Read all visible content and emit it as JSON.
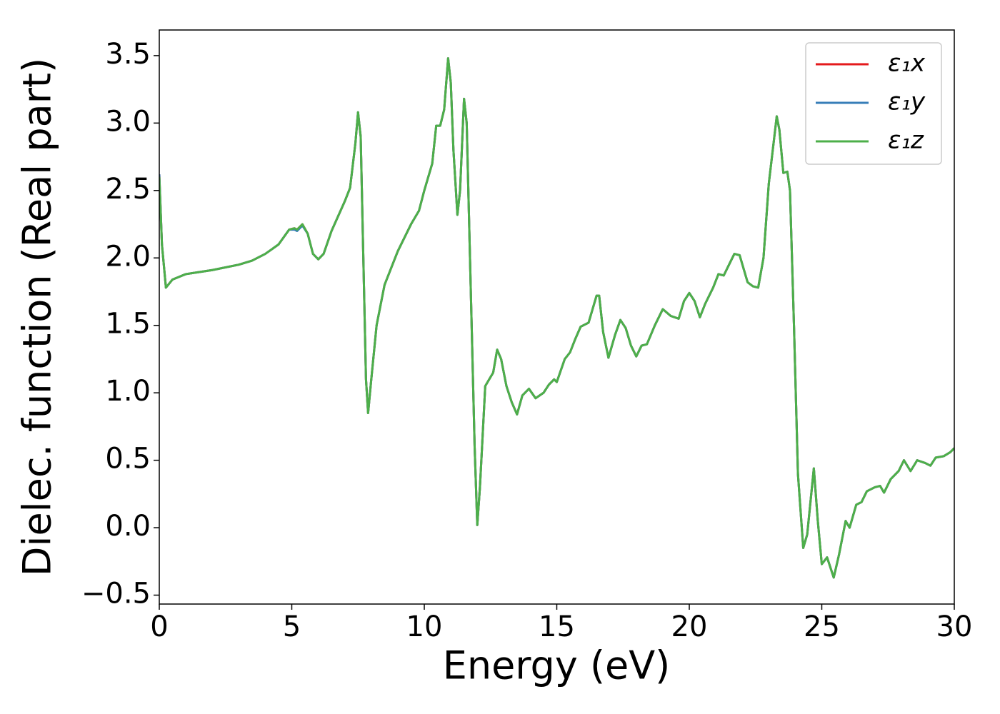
{
  "chart_data": {
    "type": "line",
    "xlabel": "Energy (eV)",
    "ylabel": "Dielec. function (Real part)",
    "xlim": [
      0,
      30
    ],
    "ylim": [
      -0.566,
      3.69
    ],
    "xticks": [
      0,
      5,
      10,
      15,
      20,
      25,
      30
    ],
    "yticks": [
      {
        "value": -0.5,
        "label": "−0.5"
      },
      {
        "value": 0,
        "label": "0.0"
      },
      0.5,
      {
        "value": 1,
        "label": "1.0"
      },
      1.5,
      {
        "value": 2,
        "label": "2.0"
      },
      2.5,
      {
        "value": 3,
        "label": "3.0"
      },
      3.5
    ],
    "grid": false,
    "legend": "upper right",
    "x": [
      0,
      0.1,
      0.25,
      0.5,
      1,
      2,
      3,
      3.5,
      4,
      4.5,
      4.9,
      5.1,
      5.2,
      5.4,
      5.6,
      5.8,
      6.0,
      6.2,
      6.5,
      7.0,
      7.2,
      7.4,
      7.5,
      7.6,
      7.7,
      7.8,
      7.88,
      8.0,
      8.2,
      8.5,
      9.0,
      9.5,
      9.8,
      10.0,
      10.3,
      10.45,
      10.6,
      10.75,
      10.9,
      11.0,
      11.1,
      11.25,
      11.35,
      11.5,
      11.6,
      11.75,
      11.9,
      12.0,
      12.1,
      12.3,
      12.45,
      12.6,
      12.75,
      12.9,
      13.1,
      13.3,
      13.5,
      13.7,
      13.95,
      14.2,
      14.5,
      14.7,
      14.9,
      15.0,
      15.3,
      15.5,
      15.7,
      15.9,
      16.2,
      16.5,
      16.6,
      16.75,
      16.95,
      17.2,
      17.4,
      17.6,
      17.8,
      18.0,
      18.2,
      18.4,
      18.7,
      19.0,
      19.3,
      19.6,
      19.8,
      20.0,
      20.2,
      20.4,
      20.6,
      20.9,
      21.1,
      21.3,
      21.5,
      21.7,
      21.9,
      22.2,
      22.4,
      22.6,
      22.8,
      23.0,
      23.3,
      23.4,
      23.55,
      23.7,
      23.8,
      23.95,
      24.1,
      24.3,
      24.45,
      24.7,
      24.85,
      25.0,
      25.2,
      25.45,
      25.65,
      25.9,
      26.05,
      26.3,
      26.5,
      26.7,
      27.0,
      27.2,
      27.35,
      27.6,
      27.9,
      28.1,
      28.35,
      28.6,
      28.9,
      29.1,
      29.3,
      29.6,
      29.85,
      30
    ],
    "series": [
      {
        "name": "ε₁x",
        "color": "#e41a1c",
        "values": [
          2.62,
          2.1,
          1.78,
          1.84,
          1.88,
          1.91,
          1.95,
          1.98,
          2.03,
          2.1,
          2.21,
          2.22,
          2.21,
          2.25,
          2.18,
          2.03,
          1.99,
          2.03,
          2.2,
          2.42,
          2.52,
          2.85,
          3.08,
          2.9,
          2.0,
          1.1,
          0.85,
          1.1,
          1.5,
          1.8,
          2.05,
          2.25,
          2.35,
          2.5,
          2.7,
          2.98,
          2.98,
          3.1,
          3.48,
          3.3,
          2.8,
          2.32,
          2.5,
          3.18,
          3.0,
          1.8,
          0.6,
          0.02,
          0.3,
          1.05,
          1.1,
          1.15,
          1.32,
          1.25,
          1.05,
          0.93,
          0.84,
          0.98,
          1.03,
          0.96,
          1.0,
          1.06,
          1.1,
          1.08,
          1.25,
          1.3,
          1.4,
          1.49,
          1.52,
          1.72,
          1.72,
          1.45,
          1.26,
          1.43,
          1.54,
          1.48,
          1.35,
          1.27,
          1.35,
          1.36,
          1.5,
          1.62,
          1.57,
          1.55,
          1.68,
          1.74,
          1.68,
          1.56,
          1.66,
          1.78,
          1.88,
          1.87,
          1.95,
          2.03,
          2.02,
          1.82,
          1.79,
          1.78,
          2.0,
          2.55,
          3.05,
          2.95,
          2.63,
          2.64,
          2.5,
          1.5,
          0.4,
          -0.15,
          -0.05,
          0.44,
          0.05,
          -0.27,
          -0.22,
          -0.37,
          -0.2,
          0.05,
          0.0,
          0.17,
          0.19,
          0.27,
          0.3,
          0.31,
          0.26,
          0.36,
          0.42,
          0.5,
          0.42,
          0.5,
          0.48,
          0.46,
          0.52,
          0.53,
          0.56,
          0.59
        ]
      },
      {
        "name": "ε₁y",
        "color": "#377eb8",
        "values": [
          2.62,
          2.1,
          1.78,
          1.84,
          1.88,
          1.91,
          1.95,
          1.98,
          2.03,
          2.1,
          2.21,
          2.21,
          2.2,
          2.24,
          2.18,
          2.03,
          1.99,
          2.03,
          2.2,
          2.42,
          2.52,
          2.85,
          3.08,
          2.9,
          2.0,
          1.1,
          0.85,
          1.1,
          1.5,
          1.8,
          2.05,
          2.25,
          2.35,
          2.5,
          2.7,
          2.98,
          2.98,
          3.1,
          3.48,
          3.3,
          2.8,
          2.32,
          2.5,
          3.18,
          3.0,
          1.8,
          0.6,
          0.02,
          0.3,
          1.05,
          1.1,
          1.15,
          1.32,
          1.25,
          1.05,
          0.93,
          0.84,
          0.98,
          1.03,
          0.96,
          1.0,
          1.06,
          1.1,
          1.08,
          1.25,
          1.3,
          1.4,
          1.49,
          1.52,
          1.72,
          1.72,
          1.45,
          1.26,
          1.43,
          1.54,
          1.48,
          1.35,
          1.27,
          1.35,
          1.36,
          1.5,
          1.62,
          1.57,
          1.55,
          1.68,
          1.74,
          1.68,
          1.56,
          1.66,
          1.78,
          1.88,
          1.87,
          1.95,
          2.03,
          2.02,
          1.82,
          1.79,
          1.78,
          2.0,
          2.55,
          3.05,
          2.95,
          2.63,
          2.64,
          2.5,
          1.5,
          0.4,
          -0.15,
          -0.05,
          0.44,
          0.05,
          -0.27,
          -0.22,
          -0.37,
          -0.2,
          0.05,
          0.0,
          0.17,
          0.19,
          0.27,
          0.3,
          0.31,
          0.26,
          0.36,
          0.42,
          0.5,
          0.42,
          0.5,
          0.48,
          0.46,
          0.52,
          0.53,
          0.56,
          0.59
        ]
      },
      {
        "name": "ε₁z",
        "color": "#4daf4a",
        "values": [
          2.6,
          2.1,
          1.78,
          1.84,
          1.88,
          1.91,
          1.95,
          1.98,
          2.03,
          2.1,
          2.21,
          2.22,
          2.21,
          2.25,
          2.18,
          2.03,
          1.99,
          2.03,
          2.2,
          2.42,
          2.52,
          2.85,
          3.08,
          2.9,
          2.0,
          1.1,
          0.85,
          1.1,
          1.5,
          1.8,
          2.05,
          2.25,
          2.35,
          2.5,
          2.7,
          2.98,
          2.98,
          3.1,
          3.48,
          3.3,
          2.8,
          2.32,
          2.5,
          3.18,
          3.0,
          1.8,
          0.6,
          0.02,
          0.3,
          1.05,
          1.1,
          1.15,
          1.32,
          1.25,
          1.05,
          0.93,
          0.84,
          0.98,
          1.03,
          0.96,
          1.0,
          1.06,
          1.1,
          1.08,
          1.25,
          1.3,
          1.4,
          1.49,
          1.52,
          1.72,
          1.72,
          1.45,
          1.26,
          1.43,
          1.54,
          1.48,
          1.35,
          1.27,
          1.35,
          1.36,
          1.5,
          1.62,
          1.57,
          1.55,
          1.68,
          1.74,
          1.68,
          1.56,
          1.66,
          1.78,
          1.88,
          1.87,
          1.95,
          2.03,
          2.02,
          1.82,
          1.79,
          1.78,
          2.0,
          2.55,
          3.05,
          2.95,
          2.63,
          2.64,
          2.5,
          1.5,
          0.4,
          -0.15,
          -0.05,
          0.44,
          0.05,
          -0.27,
          -0.22,
          -0.37,
          -0.2,
          0.05,
          0.0,
          0.17,
          0.19,
          0.27,
          0.3,
          0.31,
          0.26,
          0.36,
          0.42,
          0.5,
          0.42,
          0.5,
          0.48,
          0.46,
          0.52,
          0.53,
          0.56,
          0.59
        ]
      }
    ]
  }
}
